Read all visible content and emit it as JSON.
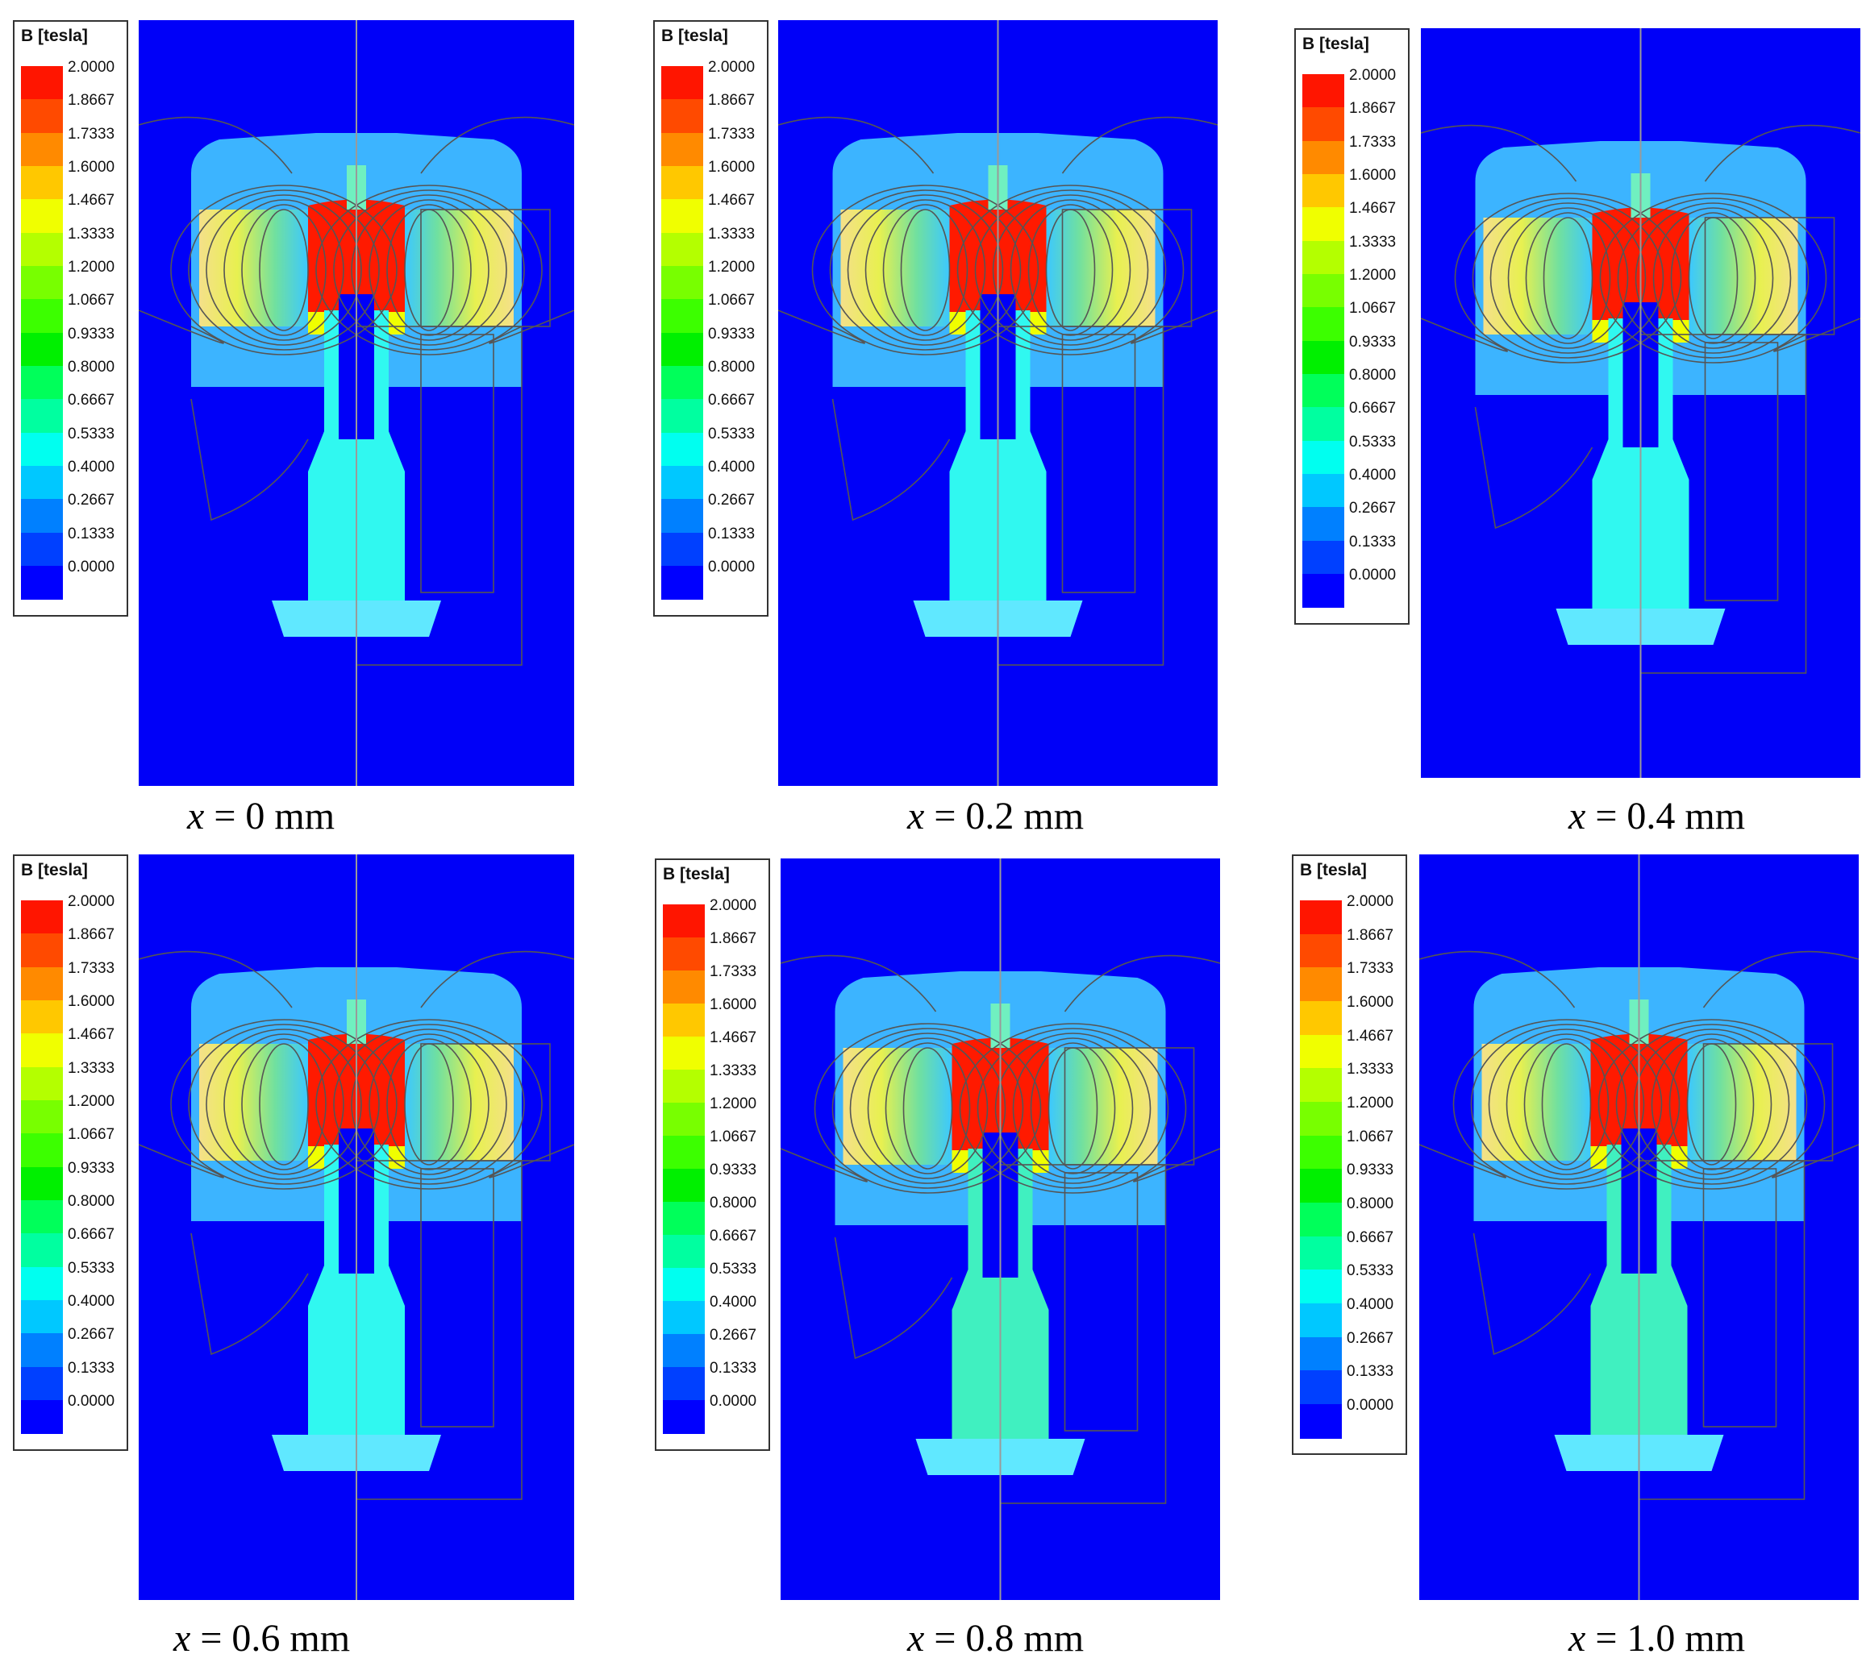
{
  "legend": {
    "title": "B [tesla]",
    "levels": [
      "2.0000",
      "1.8667",
      "1.7333",
      "1.6000",
      "1.4667",
      "1.3333",
      "1.2000",
      "1.0667",
      "0.9333",
      "0.8000",
      "0.6667",
      "0.5333",
      "0.4000",
      "0.2667",
      "0.1333",
      "0.0000"
    ],
    "colors": [
      "#ff1500",
      "#ff4a00",
      "#ff8a00",
      "#ffc800",
      "#f0ff00",
      "#b4ff00",
      "#78ff00",
      "#3cff00",
      "#00f000",
      "#00ff5a",
      "#00ffa0",
      "#00fff0",
      "#00c8ff",
      "#0080ff",
      "#0040ff",
      "#0000ff"
    ]
  },
  "panels": [
    {
      "variable": "x",
      "caption_value": "= 0 mm"
    },
    {
      "variable": "x",
      "caption_value": "= 0.2 mm"
    },
    {
      "variable": "x",
      "caption_value": "= 0.4 mm"
    },
    {
      "variable": "x",
      "caption_value": "= 0.6 mm"
    },
    {
      "variable": "x",
      "caption_value": "= 0.8 mm"
    },
    {
      "variable": "x",
      "caption_value": "= 1.0 mm"
    }
  ]
}
